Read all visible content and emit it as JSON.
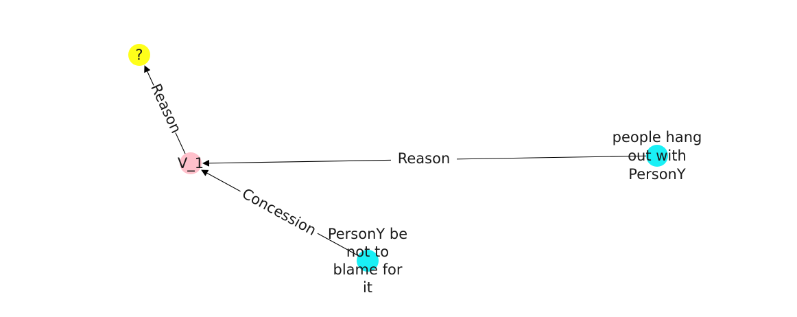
{
  "colors": {
    "question_node": "#ffff1a",
    "event_node": "#ffc0cb",
    "phrase_node": "#1af0f5",
    "edge": "#000000",
    "text": "#1a1a1a"
  },
  "nodes": {
    "question": {
      "label": "?"
    },
    "v1": {
      "label": "V_1"
    },
    "people_hang_out": {
      "lines": [
        "people hang",
        "out with",
        "PersonY"
      ]
    },
    "persony_blame": {
      "lines": [
        "PersonY be",
        "not to",
        "blame for",
        "it"
      ]
    }
  },
  "edges": {
    "v1_to_question": {
      "label": "Reason"
    },
    "hang_out_to_v1": {
      "label": "Reason"
    },
    "blame_to_v1": {
      "label": "Concession"
    }
  }
}
